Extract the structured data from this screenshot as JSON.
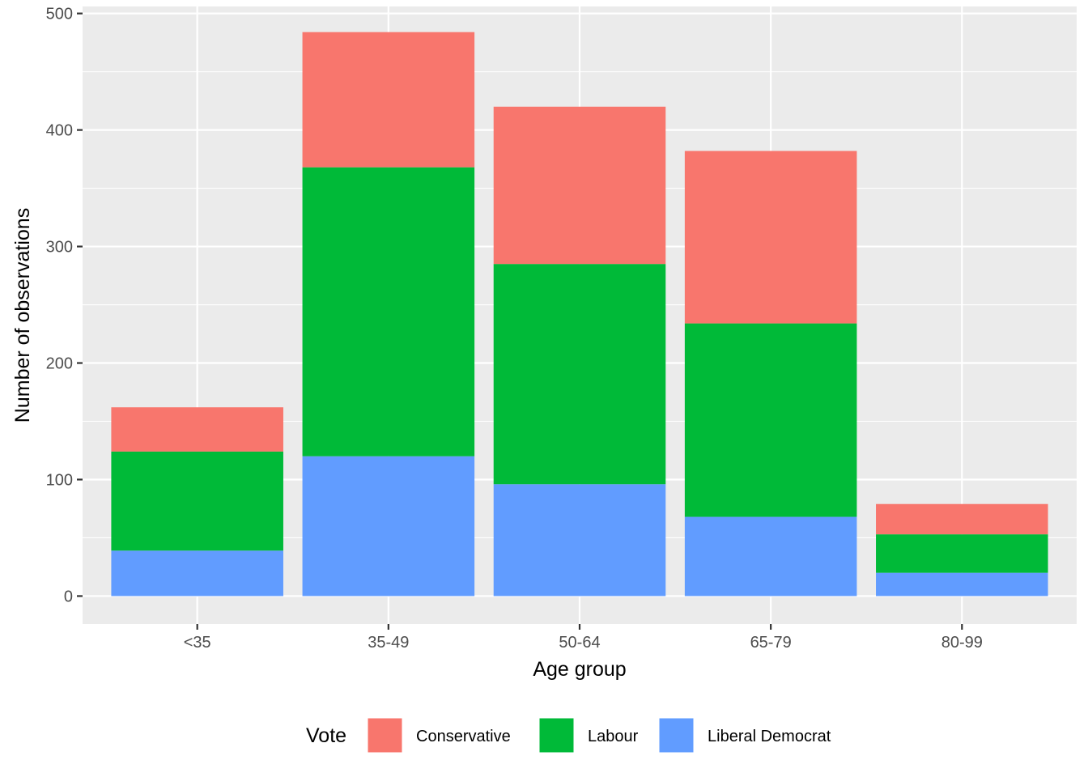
{
  "chart_data": {
    "type": "bar",
    "stacked": true,
    "title": "",
    "xlabel": "Age group",
    "ylabel": "Number of observations",
    "categories": [
      "<35",
      "35-49",
      "50-64",
      "65-79",
      "80-99"
    ],
    "series": [
      {
        "name": "Conservative",
        "color": "#F8766D",
        "values": [
          38,
          116,
          135,
          148,
          26
        ]
      },
      {
        "name": "Labour",
        "color": "#00BA38",
        "values": [
          85,
          248,
          189,
          166,
          33
        ]
      },
      {
        "name": "Liberal Democrat",
        "color": "#619CFF",
        "values": [
          39,
          120,
          96,
          68,
          20
        ]
      }
    ],
    "stack_order_bottom_to_top": [
      "Liberal Democrat",
      "Labour",
      "Conservative"
    ],
    "ylim": [
      -24,
      506
    ],
    "yticks": [
      0,
      100,
      200,
      300,
      400,
      500
    ],
    "grid": true,
    "legend": {
      "title": "Vote",
      "position": "bottom"
    },
    "background": "#EBEBEB",
    "gridline_color": "#FFFFFF"
  }
}
